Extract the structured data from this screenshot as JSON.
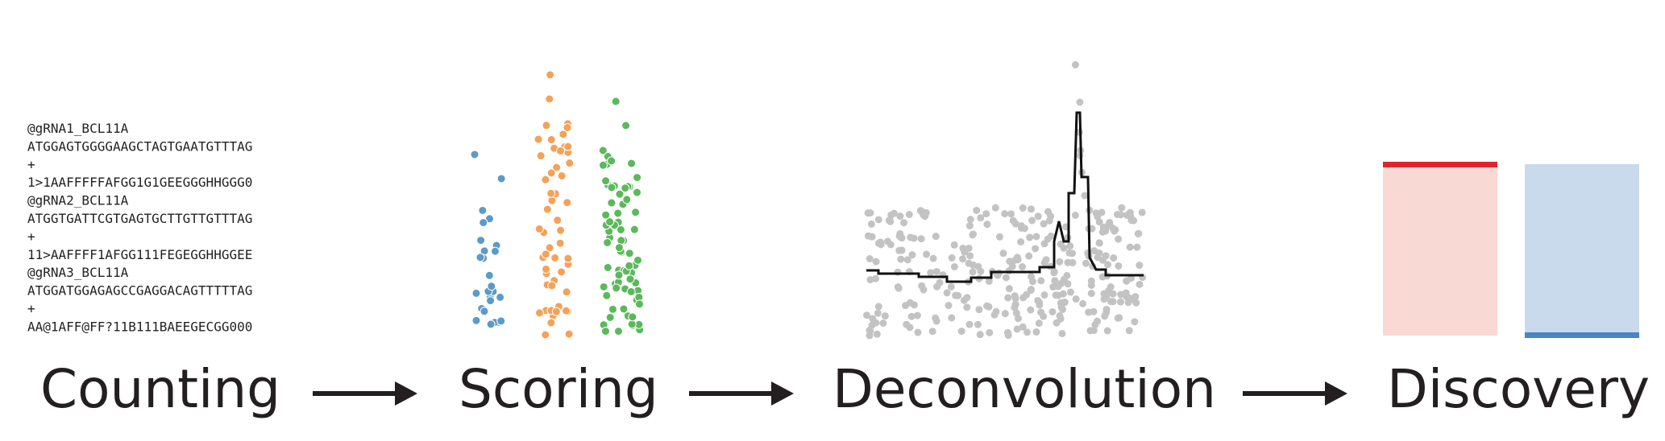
{
  "fastq": [
    "@gRNA1_BCL11A",
    "ATGGAGTGGGGAAGCTAGTGAATGTTTAG",
    "+",
    "1>1AAFFFFFAFGG1G1GEEGGGHHGGG0",
    "@gRNA2_BCL11A",
    "ATGGTGATTCGTGAGTGCTTGTTGTTTAG",
    "+",
    "11>AAFFFF1AFGG111FEGEGGHHGGEE",
    "@gRNA3_BCL11A",
    "ATGGATGGAGAGCCGAGGACAGTTTTTAG",
    "+",
    "AA@1AFF@FF?11B111BAEEGECGG000"
  ],
  "stages": [
    "Counting",
    "Scoring",
    "Deconvolution",
    "Discovery"
  ]
}
